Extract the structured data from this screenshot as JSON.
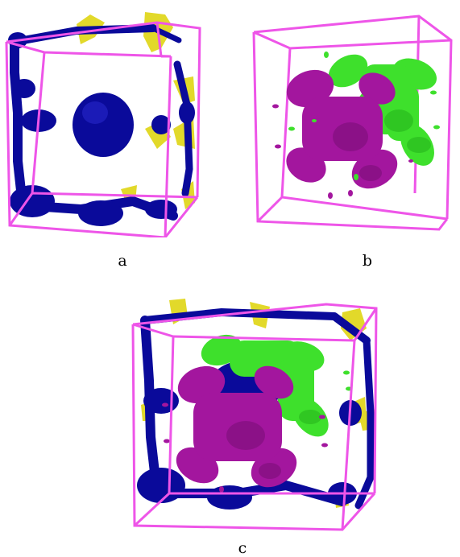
{
  "panels": [
    {
      "id": "a",
      "caption": "a"
    },
    {
      "id": "b",
      "caption": "b"
    },
    {
      "id": "c",
      "caption": "c"
    }
  ],
  "colors": {
    "frame": "#ee55e8",
    "blue": "#0a0a9a",
    "blue_light": "#2a2ad0",
    "yellow": "#e2d92a",
    "green": "#3ee02c",
    "green_dark": "#1fa817",
    "magenta": "#a3169e",
    "magenta_dark": "#6f0b6c"
  }
}
